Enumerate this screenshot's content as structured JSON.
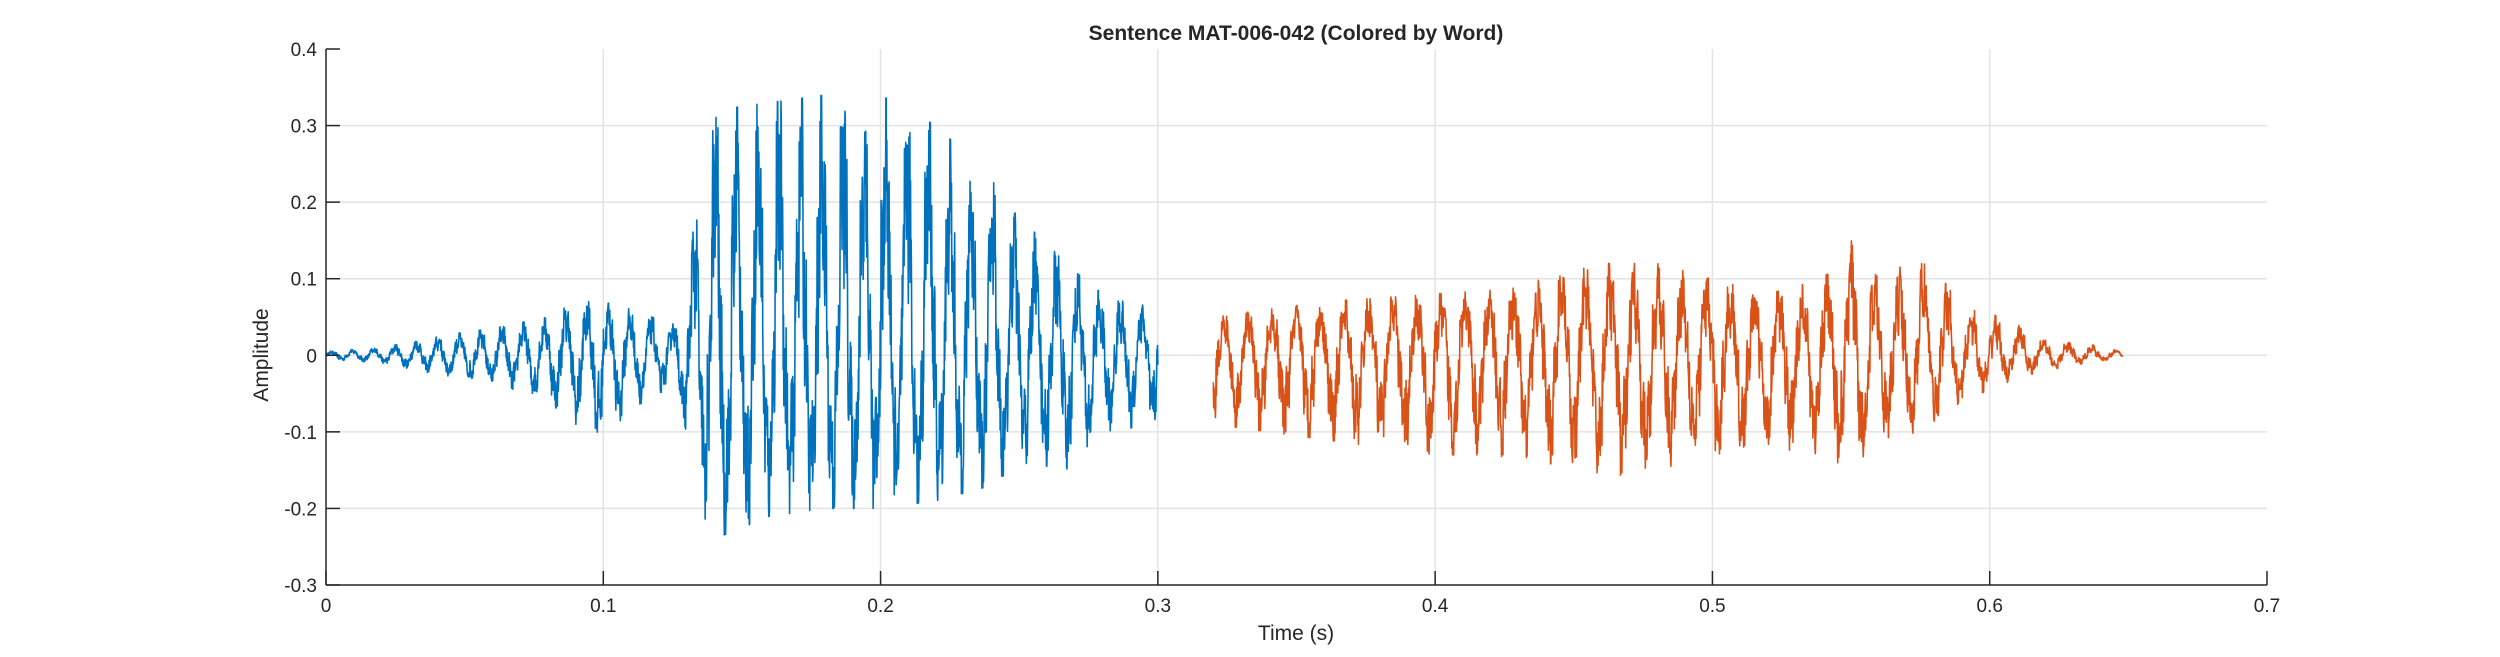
{
  "chart_data": {
    "type": "line",
    "title": "Sentence MAT-006-042 (Colored by Word)",
    "xlabel": "Time (s)",
    "ylabel": "Amplitude",
    "xlim": [
      0,
      0.7
    ],
    "ylim": [
      -0.3,
      0.4
    ],
    "xticks": [
      0,
      0.1,
      0.2,
      0.3,
      0.4,
      0.5,
      0.6,
      0.7
    ],
    "xtick_labels": [
      "0",
      "0.1",
      "0.2",
      "0.3",
      "0.4",
      "0.5",
      "0.6",
      "0.7"
    ],
    "yticks": [
      -0.3,
      -0.2,
      -0.1,
      0,
      0.1,
      0.2,
      0.3,
      0.4
    ],
    "ytick_labels": [
      "-0.3",
      "-0.2",
      "-0.1",
      "0",
      "0.1",
      "0.2",
      "0.3",
      "0.4"
    ],
    "grid": true,
    "legend": "none",
    "series": [
      {
        "color": "#0072BD",
        "x_range": [
          0,
          0.3
        ],
        "envelope": {
          "t": [
            0,
            0.02,
            0.04,
            0.06,
            0.08,
            0.09,
            0.1,
            0.11,
            0.125,
            0.13,
            0.135,
            0.14,
            0.16,
            0.18,
            0.2,
            0.22,
            0.24,
            0.25,
            0.27,
            0.28,
            0.3
          ],
          "upper": [
            0.005,
            0.01,
            0.025,
            0.035,
            0.05,
            0.07,
            0.07,
            0.06,
            0.04,
            0.1,
            0.23,
            0.32,
            0.33,
            0.34,
            0.34,
            0.3,
            0.23,
            0.18,
            0.11,
            0.08,
            0.06
          ],
          "lower": [
            -0.005,
            -0.01,
            -0.025,
            -0.035,
            -0.06,
            -0.09,
            -0.11,
            -0.07,
            -0.04,
            -0.1,
            -0.2,
            -0.24,
            -0.21,
            -0.2,
            -0.2,
            -0.19,
            -0.17,
            -0.14,
            -0.15,
            -0.1,
            -0.09
          ]
        }
      },
      {
        "color": "#D95319",
        "x_range": [
          0.32,
          0.648
        ],
        "envelope": {
          "t": [
            0.32,
            0.34,
            0.36,
            0.38,
            0.4,
            0.42,
            0.44,
            0.46,
            0.48,
            0.5,
            0.52,
            0.54,
            0.55,
            0.56,
            0.575,
            0.59,
            0.6,
            0.61,
            0.62,
            0.635,
            0.648
          ],
          "upper": [
            0.05,
            0.06,
            0.07,
            0.075,
            0.08,
            0.085,
            0.1,
            0.12,
            0.12,
            0.1,
            0.08,
            0.1,
            0.15,
            0.1,
            0.13,
            0.07,
            0.055,
            0.04,
            0.02,
            0.015,
            0.005
          ],
          "lower": [
            -0.09,
            -0.1,
            -0.11,
            -0.12,
            -0.13,
            -0.13,
            -0.14,
            -0.16,
            -0.15,
            -0.13,
            -0.12,
            -0.13,
            -0.15,
            -0.11,
            -0.1,
            -0.06,
            -0.045,
            -0.03,
            -0.02,
            -0.01,
            -0.005
          ]
        }
      }
    ]
  }
}
